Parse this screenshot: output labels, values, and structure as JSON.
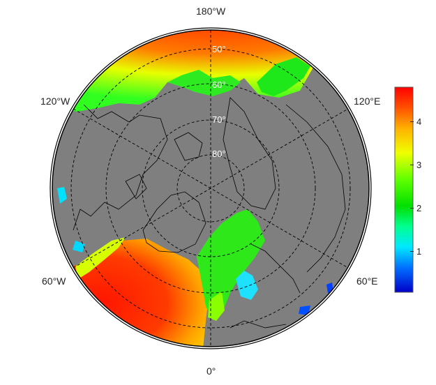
{
  "map": {
    "projection": "north-polar-stereographic",
    "longitude_labels": {
      "top": "180°W",
      "left_upper": "120°W",
      "right_upper": "120°E",
      "left_lower": "60°W",
      "right_lower": "60°E",
      "bottom": "0°"
    },
    "latitude_labels": [
      "50°",
      "60°",
      "70°",
      "80°"
    ],
    "land_color": "#7f7f7f",
    "graticule_style": "dashed"
  },
  "colorbar": {
    "ticks": [
      "1",
      "2",
      "3",
      "4"
    ],
    "min": 0,
    "max": 4.75,
    "colors": [
      "#0000c8",
      "#0088ff",
      "#00ffff",
      "#00ff80",
      "#00e000",
      "#80ff00",
      "#ffff00",
      "#ffc000",
      "#ff6000",
      "#ff0000"
    ]
  }
}
